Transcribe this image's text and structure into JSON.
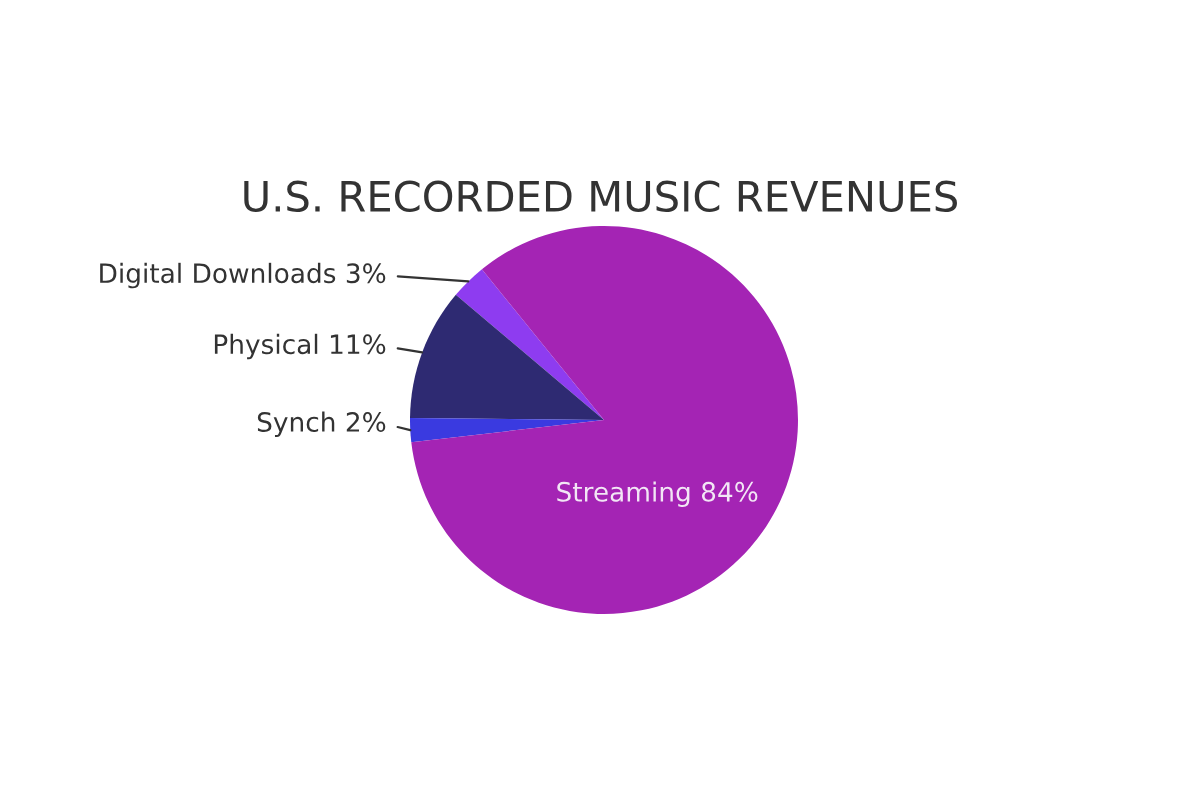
{
  "chart_data": {
    "type": "pie",
    "title": "U.S. RECORDED MUSIC REVENUES",
    "categories": [
      "Digital Downloads",
      "Physical",
      "Synch",
      "Streaming"
    ],
    "values": [
      3,
      11,
      2,
      84
    ],
    "value_labels": [
      "3%",
      "11%",
      "2%",
      "84%"
    ],
    "colors": [
      "#8e3cf0",
      "#2e2a72",
      "#3a3ae0",
      "#a424b4"
    ]
  }
}
